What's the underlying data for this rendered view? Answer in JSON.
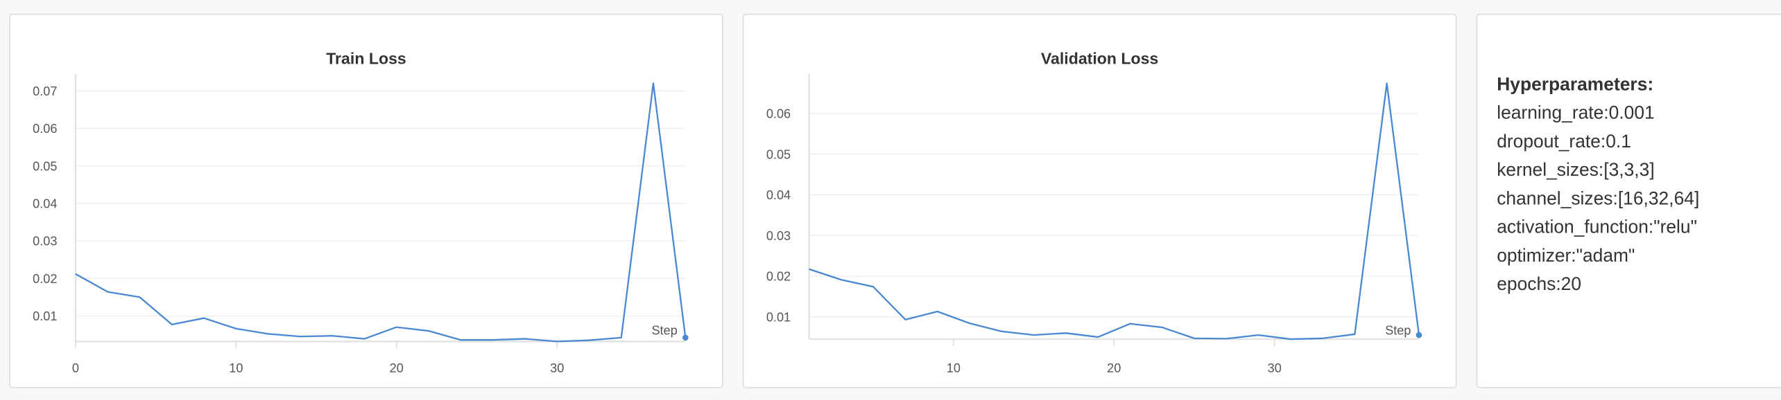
{
  "colors": {
    "series": "#4a88d0"
  },
  "chart_data": [
    {
      "type": "line",
      "title": "Train Loss",
      "xlabel": "Step",
      "ylabel": "",
      "xlim": [
        0,
        38
      ],
      "ylim": [
        0.0032,
        0.072
      ],
      "xticks": [
        0,
        10,
        20,
        30
      ],
      "yticks": [
        0.01,
        0.02,
        0.03,
        0.04,
        0.05,
        0.06,
        0.07
      ],
      "grid": true,
      "series": [
        {
          "x": [
            0,
            2,
            4,
            6,
            8,
            10,
            12,
            14,
            16,
            18,
            20,
            22,
            24,
            26,
            28,
            30,
            32,
            34,
            36,
            38
          ],
          "y": [
            0.0212,
            0.0164,
            0.015,
            0.0077,
            0.0094,
            0.0066,
            0.0052,
            0.0045,
            0.0047,
            0.0039,
            0.007,
            0.006,
            0.0036,
            0.0036,
            0.0039,
            0.0032,
            0.0035,
            0.0042,
            0.072,
            0.0042
          ]
        }
      ]
    },
    {
      "type": "line",
      "title": "Validation Loss",
      "xlabel": "Step",
      "ylabel": "",
      "xlim": [
        1,
        39
      ],
      "ylim": [
        0.0045,
        0.0674
      ],
      "xticks": [
        10,
        20,
        30
      ],
      "yticks": [
        0.01,
        0.02,
        0.03,
        0.04,
        0.05,
        0.06
      ],
      "grid": true,
      "series": [
        {
          "x": [
            1,
            3,
            5,
            7,
            9,
            11,
            13,
            15,
            17,
            19,
            21,
            23,
            25,
            27,
            29,
            31,
            33,
            35,
            37,
            39
          ],
          "y": [
            0.0217,
            0.0191,
            0.0174,
            0.0093,
            0.0113,
            0.0084,
            0.0064,
            0.0055,
            0.006,
            0.005,
            0.0083,
            0.0074,
            0.0047,
            0.0046,
            0.0055,
            0.0045,
            0.0047,
            0.0057,
            0.0674,
            0.0055
          ]
        }
      ]
    }
  ],
  "hyperparameters": {
    "title": "Hyperparameters:",
    "learning_rate": "learning_rate:0.001",
    "dropout_rate": "dropout_rate:0.1",
    "kernel_sizes": "kernel_sizes:[3,3,3]",
    "channel_sizes": "channel_sizes:[16,32,64]",
    "activation_function": "activation_function:\"relu\"",
    "optimizer": "optimizer:\"adam\"",
    "epochs": "epochs:20"
  }
}
